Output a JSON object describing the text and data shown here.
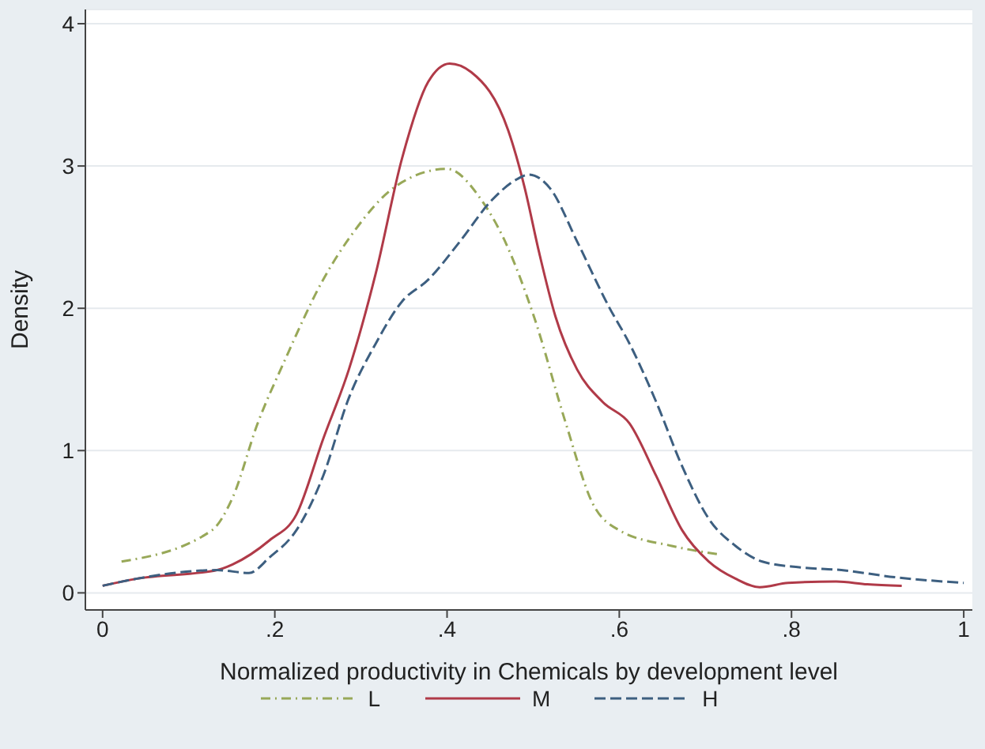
{
  "chart_data": {
    "type": "line",
    "xlabel": "Normalized productivity in Chemicals by development level",
    "ylabel": "Density",
    "xlim": [
      -0.02,
      1.01
    ],
    "xticks": [
      0,
      {
        "value": 0.2,
        "label": ".2"
      },
      {
        "value": 0.4,
        "label": ".4"
      },
      {
        "value": 0.6,
        "label": ".6"
      },
      {
        "value": 0.8,
        "label": ".8"
      },
      1
    ],
    "ylim": [
      -0.12,
      4.1
    ],
    "yticks": [
      0,
      1,
      2,
      3,
      4
    ],
    "grid": "y",
    "legend": "bottom",
    "marker": "none",
    "series": [
      {
        "name": "L",
        "color": "#98a858",
        "line_style": "dotted",
        "x": [
          0.022,
          0.127,
          0.151,
          0.18,
          0.212,
          0.256,
          0.292,
          0.341,
          0.4,
          0.44,
          0.465,
          0.501,
          0.538,
          0.569,
          0.6,
          0.661,
          0.716
        ],
        "values": [
          0.22,
          0.44,
          0.67,
          1.19,
          1.64,
          2.2,
          2.54,
          2.86,
          2.98,
          2.76,
          2.5,
          1.94,
          1.19,
          0.63,
          0.44,
          0.33,
          0.27
        ]
      },
      {
        "name": "M",
        "color": "#b03a48",
        "line_style": "solid",
        "x": [
          0.0,
          0.04,
          0.133,
          0.151,
          0.194,
          0.225,
          0.256,
          0.286,
          0.317,
          0.348,
          0.378,
          0.403,
          0.428,
          0.471,
          0.49,
          0.507,
          0.526,
          0.551,
          0.581,
          0.612,
          0.643,
          0.673,
          0.704,
          0.735,
          0.763,
          0.796,
          0.852,
          0.888,
          0.928
        ],
        "values": [
          0.05,
          0.1,
          0.16,
          0.2,
          0.37,
          0.55,
          1.08,
          1.57,
          2.24,
          3.06,
          3.59,
          3.72,
          3.66,
          3.25,
          2.85,
          2.39,
          1.94,
          1.57,
          1.34,
          1.19,
          0.82,
          0.44,
          0.22,
          0.1,
          0.04,
          0.07,
          0.08,
          0.06,
          0.05
        ]
      },
      {
        "name": "H",
        "color": "#3d5f80",
        "line_style": "dashed",
        "x": [
          0.0,
          0.04,
          0.133,
          0.17,
          0.194,
          0.225,
          0.256,
          0.286,
          0.317,
          0.348,
          0.378,
          0.415,
          0.452,
          0.482,
          0.495,
          0.52,
          0.551,
          0.588,
          0.612,
          0.643,
          0.673,
          0.704,
          0.735,
          0.766,
          0.809,
          0.858,
          0.92,
          1.0
        ],
        "values": [
          0.05,
          0.1,
          0.16,
          0.14,
          0.25,
          0.44,
          0.82,
          1.37,
          1.75,
          2.05,
          2.2,
          2.47,
          2.76,
          2.91,
          2.94,
          2.84,
          2.47,
          2.01,
          1.75,
          1.34,
          0.89,
          0.52,
          0.33,
          0.22,
          0.18,
          0.16,
          0.11,
          0.07
        ]
      }
    ]
  }
}
